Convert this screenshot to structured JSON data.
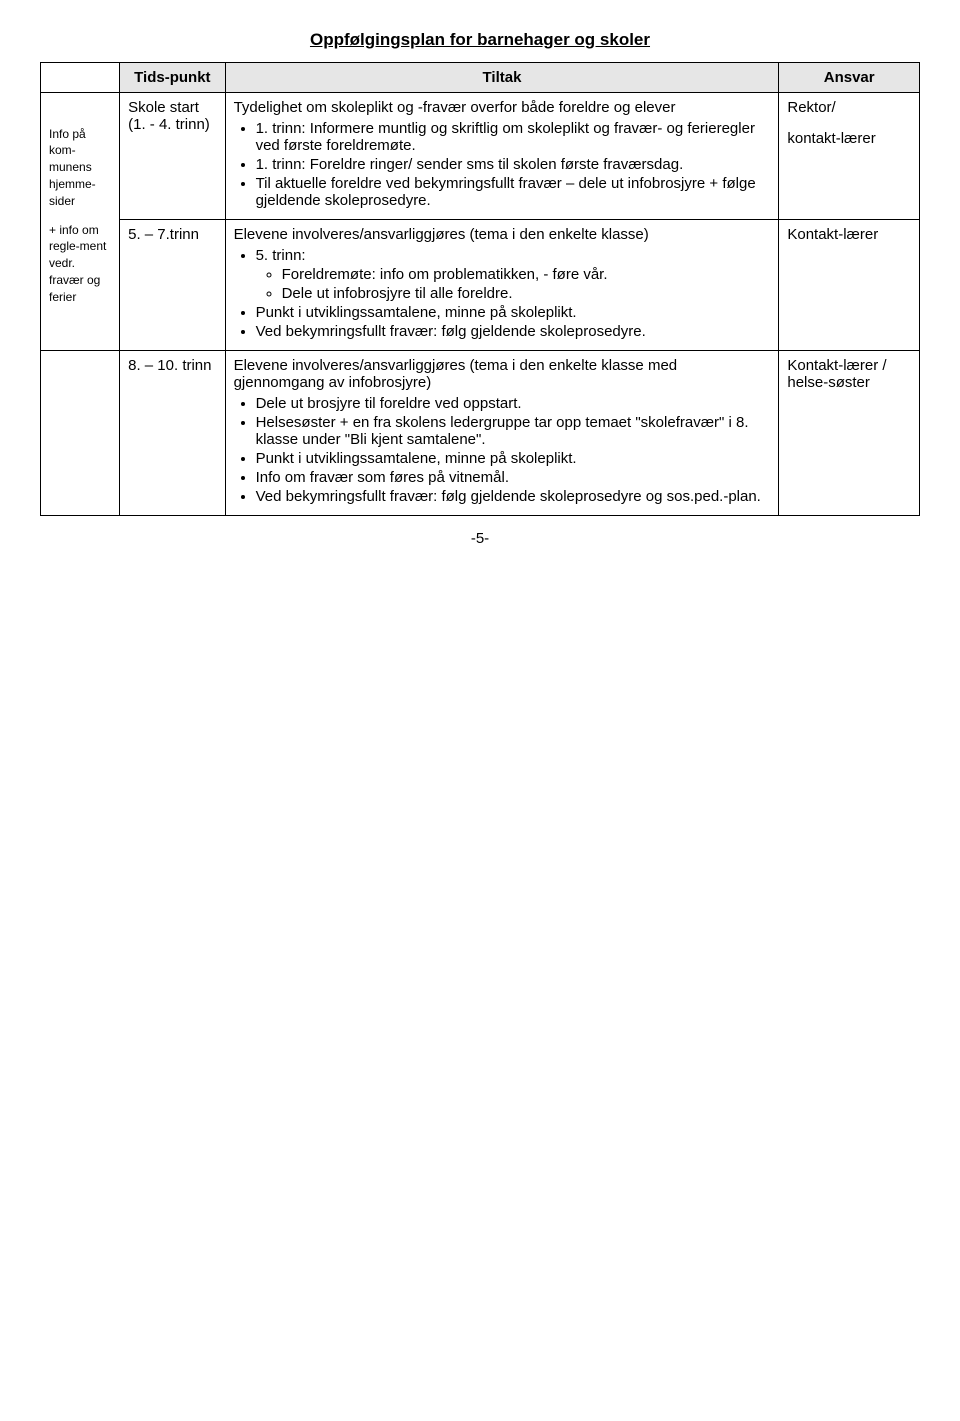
{
  "title": "Oppfølgingsplan for barnehager og skoler",
  "headers": {
    "tidspunkt": "Tids-punkt",
    "tiltak": "Tiltak",
    "ansvar": "Ansvar"
  },
  "side": {
    "block1": "Info på kom-munens hjemme-sider",
    "block2": "+ info om regle-ment vedr. fravær og ferier"
  },
  "rows": [
    {
      "tidspunkt": "Skole start (1. - 4. trinn)",
      "tiltak": {
        "intro": "Tydelighet om skoleplikt og -fravær overfor både foreldre og elever",
        "bullets": [
          "1. trinn: Informere muntlig og skriftlig om skoleplikt og fravær- og ferieregler ved første foreldremøte.",
          "1. trinn: Foreldre ringer/ sender sms til skolen første fraværsdag.",
          "Til aktuelle foreldre ved bekymringsfullt fravær – dele ut infobrosjyre + følge gjeldende skoleprosedyre."
        ]
      },
      "ansvar_lines": [
        "Rektor/",
        "",
        "kontakt-lærer"
      ]
    },
    {
      "tidspunkt": "5. – 7.trinn",
      "tiltak": {
        "intro": "Elevene involveres/ansvarliggjøres (tema i den enkelte klasse)",
        "bullets": [
          {
            "text": "5. trinn:",
            "sub": [
              "Foreldremøte: info om problematikken, - føre vår.",
              "Dele ut infobrosjyre til alle foreldre."
            ]
          },
          "Punkt i utviklingssamtalene, minne på skoleplikt.",
          "Ved bekymringsfullt fravær: følg gjeldende skoleprosedyre."
        ]
      },
      "ansvar_lines": [
        "Kontakt-lærer"
      ]
    },
    {
      "tidspunkt": "8. – 10. trinn",
      "tiltak": {
        "intro": "Elevene involveres/ansvarliggjøres (tema i den enkelte klasse med gjennomgang av infobrosjyre)",
        "bullets": [
          "Dele ut brosjyre til foreldre ved oppstart.",
          "Helsesøster + en fra skolens ledergruppe tar opp temaet \"skolefravær\" i 8. klasse under \"Bli kjent samtalene\".",
          "Punkt i utviklingssamtalene, minne på skoleplikt.",
          "Info om fravær som føres på vitnemål.",
          "Ved bekymringsfullt fravær: følg gjeldende skoleprosedyre og sos.ped.-plan."
        ]
      },
      "ansvar_lines": [
        "",
        "Kontakt-lærer / helse-søster"
      ]
    }
  ],
  "footer": "-5-"
}
